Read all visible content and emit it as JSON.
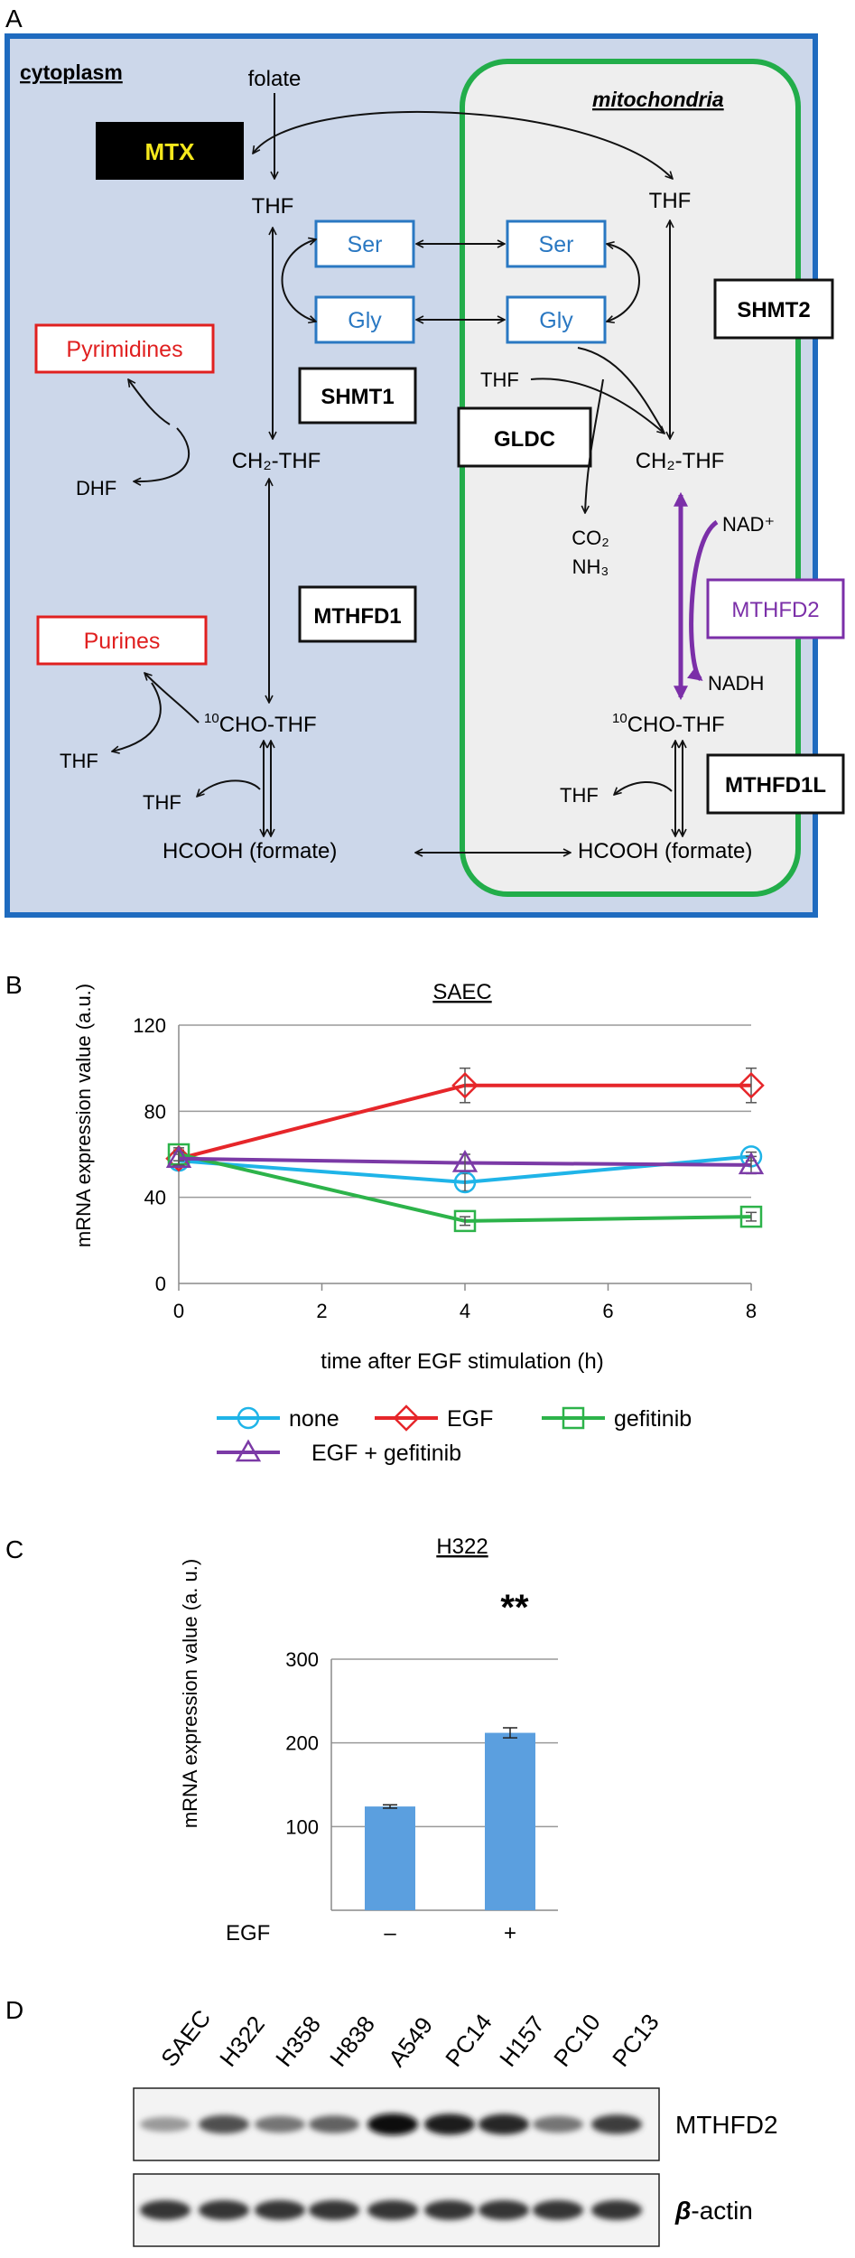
{
  "panels": {
    "a": "A",
    "b": "B",
    "c": "C",
    "d": "D"
  },
  "diagram": {
    "compartments": {
      "cytoplasm": "cytoplasm",
      "mitochondria": "mitochondria"
    },
    "cytoplasm": {
      "folate": "folate",
      "mtx": "MTX",
      "thf_top": "THF",
      "ser": "Ser",
      "gly": "Gly",
      "shmt1": "SHMT1",
      "ch2thf": "CH₂-THF",
      "pyrimidines": "Pyrimidines",
      "dhf": "DHF",
      "mthfd1": "MTHFD1",
      "purines": "Purines",
      "thf_purine": "THF",
      "cho_thf_sup": "10",
      "cho_thf": "CHO-THF",
      "thf_formate": "THF",
      "formate": "HCOOH (formate)"
    },
    "mitochondria": {
      "thf_top": "THF",
      "ser": "Ser",
      "gly": "Gly",
      "shmt2": "SHMT2",
      "thf_gldc": "THF",
      "gldc": "GLDC",
      "ch2thf": "CH₂-THF",
      "co2": "CO₂",
      "nh3": "NH₃",
      "nad": "NAD⁺",
      "mthfd2": "MTHFD2",
      "nadh": "NADH",
      "cho_thf_sup": "10",
      "cho_thf": "CHO-THF",
      "thf_formate": "THF",
      "mthfd1l": "MTHFD1L",
      "formate": "HCOOH (formate)"
    },
    "colors": {
      "cytoplasm_border": "#1f6bbf",
      "cytoplasm_fill": "#ccd7ea",
      "mito_border": "#22ad4a",
      "mito_fill": "#eeeeee",
      "amino_acid": "#2a78c2",
      "product": "#e02020",
      "mthfd2": "#7b2fa8",
      "mtx_text": "#f5e81c"
    }
  },
  "chart_b": {
    "title": "SAEC",
    "ylabel": "mRNA expression value  (a.u.)",
    "xlabel": "time after EGF stimulation (h)",
    "legend": {
      "none": "none",
      "egf": "EGF",
      "gefitinib": "gefitinib",
      "egf_gefitinib": "EGF + gefitinib"
    }
  },
  "chart_c": {
    "title": "H322",
    "ylabel": "mRNA expression value  (a. u.)",
    "egf_label": "EGF",
    "significance": "**"
  },
  "chart_data": [
    {
      "type": "line",
      "title": "SAEC",
      "xlabel": "time after EGF stimulation (h)",
      "ylabel": "mRNA expression value  (a.u.)",
      "x": [
        0,
        4,
        8
      ],
      "xticks": [
        0,
        2,
        4,
        6,
        8
      ],
      "xlim": [
        0,
        8
      ],
      "ylim": [
        0,
        120
      ],
      "yticks": [
        0,
        40,
        80,
        120
      ],
      "grid": "horizontal",
      "legend_position": "bottom",
      "series": [
        {
          "name": "none",
          "color": "#1fb4e8",
          "marker": "circle",
          "values": [
            57,
            47,
            59
          ],
          "errors": [
            3,
            4,
            2
          ]
        },
        {
          "name": "EGF",
          "color": "#e6262a",
          "marker": "diamond",
          "values": [
            58,
            92,
            92
          ],
          "errors": [
            4,
            8,
            8
          ]
        },
        {
          "name": "gefitinib",
          "color": "#2db34a",
          "marker": "square",
          "values": [
            60,
            29,
            31
          ],
          "errors": [
            3,
            2,
            2
          ]
        },
        {
          "name": "EGF + gefitinib",
          "color": "#7b3aa6",
          "marker": "triangle",
          "values": [
            58,
            56,
            55
          ],
          "errors": [
            3,
            4,
            4
          ]
        }
      ]
    },
    {
      "type": "bar",
      "title": "H322",
      "ylabel": "mRNA expression value  (a. u.)",
      "categories": [
        "–",
        "+"
      ],
      "values": [
        124,
        212
      ],
      "errors": [
        2,
        6
      ],
      "ylim": [
        0,
        300
      ],
      "yticks": [
        100,
        200,
        300
      ],
      "color": "#5b9fdf",
      "grid": "horizontal"
    }
  ],
  "blot": {
    "lanes": [
      "SAEC",
      "H322",
      "H358",
      "H838",
      "A549",
      "PC14",
      "H157",
      "PC10",
      "PC13"
    ],
    "rows": [
      {
        "label": "MTHFD2",
        "intensities": [
          0.25,
          0.65,
          0.45,
          0.55,
          1.0,
          0.92,
          0.88,
          0.45,
          0.75
        ]
      },
      {
        "label_italic": "β",
        "label_rest": "-actin",
        "intensities": [
          0.8,
          0.8,
          0.8,
          0.8,
          0.8,
          0.8,
          0.8,
          0.8,
          0.8
        ]
      }
    ]
  }
}
